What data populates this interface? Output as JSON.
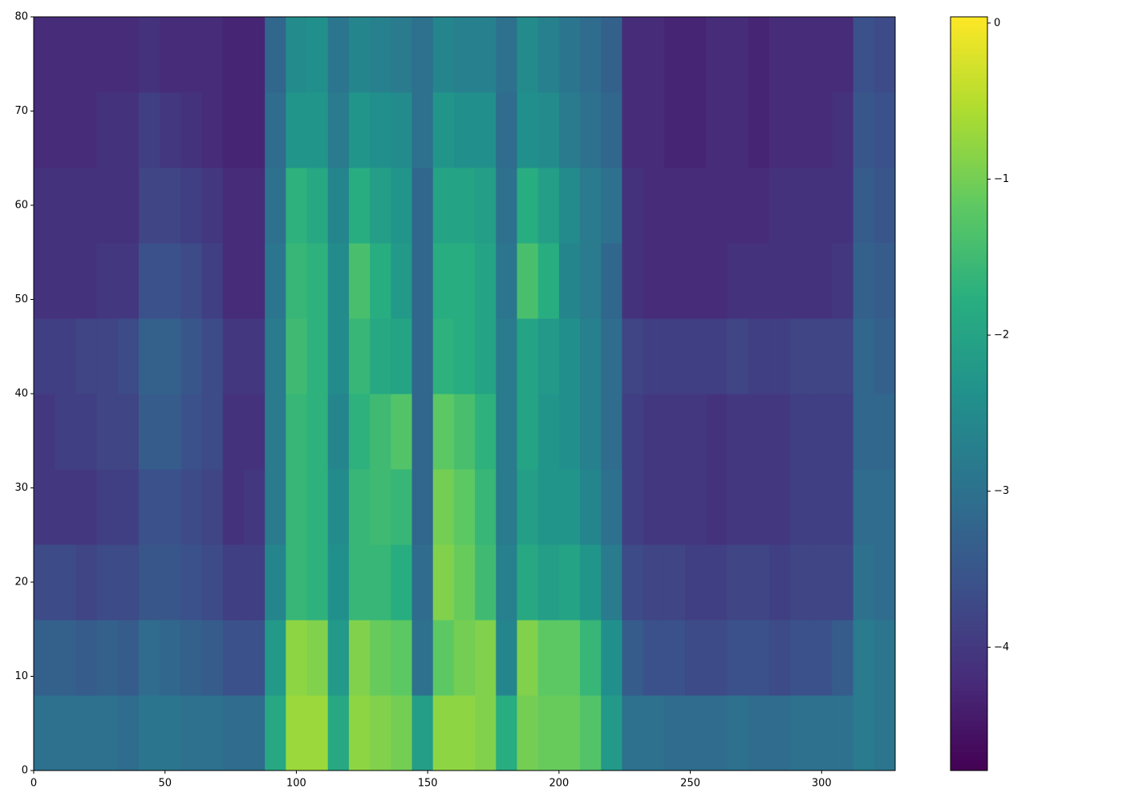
{
  "chart_data": {
    "type": "heatmap",
    "colormap": "viridis",
    "x_edges": [
      0,
      8,
      16,
      24,
      32,
      40,
      48,
      56,
      64,
      72,
      80,
      88,
      96,
      104,
      112,
      120,
      128,
      136,
      144,
      152,
      160,
      168,
      176,
      184,
      192,
      200,
      208,
      216,
      224,
      232,
      240,
      248,
      256,
      264,
      272,
      280,
      288,
      296,
      304,
      312,
      320,
      328
    ],
    "y_edges": [
      0,
      8,
      16,
      24,
      32,
      40,
      48,
      56,
      64,
      72,
      80
    ],
    "values": [
      [
        -3.0,
        -3.0,
        -3.0,
        -3.0,
        -3.1,
        -2.9,
        -2.9,
        -3.0,
        -3.0,
        -3.1,
        -3.1,
        -1.9,
        -0.7,
        -0.7,
        -1.9,
        -0.8,
        -0.9,
        -1.0,
        -2.1,
        -0.8,
        -0.8,
        -0.9,
        -1.8,
        -1.0,
        -1.1,
        -1.1,
        -1.3,
        -2.2,
        -3.0,
        -3.0,
        -3.1,
        -3.1,
        -3.1,
        -3.0,
        -3.1,
        -3.1,
        -3.0,
        -3.0,
        -3.0,
        -2.8,
        -2.9
      ],
      [
        -3.3,
        -3.3,
        -3.4,
        -3.3,
        -3.4,
        -3.1,
        -3.2,
        -3.3,
        -3.4,
        -3.6,
        -3.6,
        -2.2,
        -0.8,
        -0.9,
        -2.2,
        -0.9,
        -1.1,
        -1.2,
        -3.0,
        -1.2,
        -1.0,
        -0.9,
        -2.6,
        -0.9,
        -1.2,
        -1.2,
        -1.6,
        -2.4,
        -3.4,
        -3.6,
        -3.6,
        -3.7,
        -3.7,
        -3.6,
        -3.6,
        -3.7,
        -3.6,
        -3.6,
        -3.4,
        -2.8,
        -2.9
      ],
      [
        -3.7,
        -3.7,
        -3.8,
        -3.7,
        -3.7,
        -3.5,
        -3.5,
        -3.6,
        -3.7,
        -3.9,
        -3.9,
        -2.6,
        -1.6,
        -1.7,
        -2.4,
        -1.6,
        -1.6,
        -1.8,
        -3.1,
        -0.9,
        -1.1,
        -1.5,
        -2.7,
        -1.9,
        -2.1,
        -2.0,
        -2.3,
        -2.8,
        -3.7,
        -3.8,
        -3.8,
        -3.9,
        -3.9,
        -3.8,
        -3.8,
        -3.9,
        -3.8,
        -3.8,
        -3.8,
        -3.0,
        -3.1
      ],
      [
        -4.0,
        -4.0,
        -4.0,
        -3.9,
        -3.9,
        -3.6,
        -3.6,
        -3.7,
        -3.8,
        -4.1,
        -4.0,
        -2.8,
        -1.6,
        -1.7,
        -2.5,
        -1.6,
        -1.5,
        -1.6,
        -3.2,
        -1.0,
        -1.2,
        -1.6,
        -2.8,
        -2.1,
        -2.3,
        -2.3,
        -2.6,
        -3.0,
        -3.9,
        -4.0,
        -4.0,
        -4.0,
        -4.1,
        -4.0,
        -4.0,
        -4.0,
        -3.9,
        -3.9,
        -3.9,
        -3.1,
        -3.1
      ],
      [
        -4.0,
        -3.9,
        -3.9,
        -3.8,
        -3.8,
        -3.4,
        -3.4,
        -3.6,
        -3.7,
        -4.1,
        -4.1,
        -2.8,
        -1.6,
        -1.7,
        -2.6,
        -1.7,
        -1.5,
        -1.3,
        -3.2,
        -1.2,
        -1.4,
        -1.7,
        -2.8,
        -2.0,
        -2.3,
        -2.4,
        -2.7,
        -3.1,
        -3.9,
        -4.0,
        -4.0,
        -4.0,
        -4.1,
        -4.0,
        -4.0,
        -4.0,
        -3.9,
        -3.9,
        -3.9,
        -3.2,
        -3.2
      ],
      [
        -3.9,
        -3.9,
        -3.8,
        -3.8,
        -3.7,
        -3.3,
        -3.3,
        -3.5,
        -3.7,
        -4.0,
        -4.0,
        -2.8,
        -1.5,
        -1.7,
        -2.5,
        -1.6,
        -1.9,
        -2.0,
        -3.2,
        -1.7,
        -1.8,
        -2.0,
        -2.8,
        -2.0,
        -2.2,
        -2.4,
        -2.7,
        -3.1,
        -3.8,
        -3.9,
        -3.9,
        -3.9,
        -3.9,
        -3.8,
        -3.9,
        -3.9,
        -3.8,
        -3.8,
        -3.8,
        -3.2,
        -3.3
      ],
      [
        -4.1,
        -4.1,
        -4.1,
        -4.0,
        -4.0,
        -3.6,
        -3.6,
        -3.7,
        -3.9,
        -4.2,
        -4.2,
        -2.9,
        -1.6,
        -1.7,
        -2.5,
        -1.4,
        -1.8,
        -2.2,
        -3.2,
        -1.8,
        -1.8,
        -2.0,
        -2.9,
        -1.4,
        -1.8,
        -2.6,
        -2.8,
        -3.2,
        -4.1,
        -4.2,
        -4.2,
        -4.2,
        -4.2,
        -4.1,
        -4.1,
        -4.1,
        -4.1,
        -4.1,
        -4.0,
        -3.3,
        -3.4
      ],
      [
        -4.1,
        -4.1,
        -4.1,
        -4.1,
        -4.1,
        -3.8,
        -3.8,
        -3.9,
        -4.0,
        -4.2,
        -4.2,
        -3.0,
        -1.7,
        -1.9,
        -2.6,
        -1.8,
        -2.1,
        -2.3,
        -3.2,
        -2.0,
        -2.0,
        -2.1,
        -3.0,
        -1.8,
        -2.1,
        -2.5,
        -2.8,
        -3.0,
        -4.1,
        -4.2,
        -4.2,
        -4.2,
        -4.2,
        -4.2,
        -4.2,
        -4.1,
        -4.1,
        -4.1,
        -4.1,
        -3.4,
        -3.5
      ],
      [
        -4.2,
        -4.2,
        -4.2,
        -4.1,
        -4.1,
        -3.9,
        -4.0,
        -4.1,
        -4.2,
        -4.3,
        -4.3,
        -3.1,
        -2.3,
        -2.3,
        -2.8,
        -2.3,
        -2.4,
        -2.5,
        -3.0,
        -2.3,
        -2.4,
        -2.4,
        -3.1,
        -2.4,
        -2.5,
        -2.8,
        -3.0,
        -3.2,
        -4.2,
        -4.2,
        -4.3,
        -4.3,
        -4.2,
        -4.2,
        -4.3,
        -4.2,
        -4.2,
        -4.2,
        -4.1,
        -3.5,
        -3.6
      ],
      [
        -4.2,
        -4.2,
        -4.2,
        -4.2,
        -4.2,
        -4.1,
        -4.2,
        -4.2,
        -4.2,
        -4.3,
        -4.3,
        -3.2,
        -2.5,
        -2.4,
        -2.9,
        -2.6,
        -2.7,
        -2.8,
        -3.0,
        -2.6,
        -2.7,
        -2.7,
        -3.0,
        -2.5,
        -2.7,
        -2.9,
        -3.1,
        -3.3,
        -4.2,
        -4.2,
        -4.3,
        -4.3,
        -4.2,
        -4.2,
        -4.3,
        -4.2,
        -4.2,
        -4.2,
        -4.2,
        -3.6,
        -3.7
      ]
    ],
    "xlim": [
      0,
      328
    ],
    "ylim": [
      0,
      80
    ],
    "xticks": [
      0,
      50,
      100,
      150,
      200,
      250,
      300
    ],
    "yticks": [
      0,
      10,
      20,
      30,
      40,
      50,
      60,
      70,
      80
    ],
    "clim": [
      -4.79,
      0.04
    ],
    "cticks": [
      0,
      {
        "value": -1,
        "label": "−1"
      },
      {
        "value": -2,
        "label": "−2"
      },
      {
        "value": -3,
        "label": "−3"
      },
      {
        "value": -4,
        "label": "−4"
      }
    ]
  }
}
